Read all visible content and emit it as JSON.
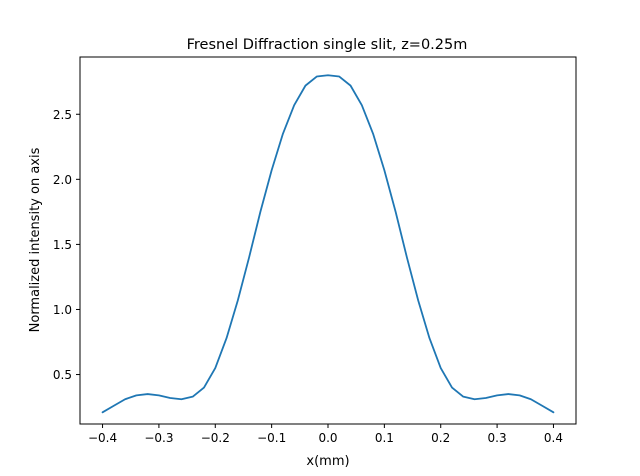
{
  "chart_data": {
    "type": "line",
    "title": "Fresnel Diffraction single slit, z=0.25m",
    "xlabel": "x(mm)",
    "ylabel": "Normalized intensity on axis",
    "xlim": [
      -0.44,
      0.44
    ],
    "ylim": [
      0.12,
      2.94
    ],
    "xticks": [
      -0.4,
      -0.3,
      -0.2,
      -0.1,
      0.0,
      0.1,
      0.2,
      0.3,
      0.4
    ],
    "xtick_labels": [
      "−0.4",
      "−0.3",
      "−0.2",
      "−0.1",
      "0.0",
      "0.1",
      "0.2",
      "0.3",
      "0.4"
    ],
    "yticks": [
      0.5,
      1.0,
      1.5,
      2.0,
      2.5
    ],
    "ytick_labels": [
      "0.5",
      "1.0",
      "1.5",
      "2.0",
      "2.5"
    ],
    "grid": false,
    "line_color": "#1f77b4",
    "series": [
      {
        "x": [
          -0.4,
          -0.38,
          -0.36,
          -0.34,
          -0.32,
          -0.3,
          -0.28,
          -0.26,
          -0.24,
          -0.22,
          -0.2,
          -0.18,
          -0.16,
          -0.14,
          -0.12,
          -0.1,
          -0.08,
          -0.06,
          -0.04,
          -0.02,
          0.0,
          0.02,
          0.04,
          0.06,
          0.08,
          0.1,
          0.12,
          0.14,
          0.16,
          0.18,
          0.2,
          0.22,
          0.24,
          0.26,
          0.28,
          0.3,
          0.32,
          0.34,
          0.36,
          0.38,
          0.4
        ],
        "values": [
          0.21,
          0.26,
          0.31,
          0.34,
          0.35,
          0.34,
          0.32,
          0.31,
          0.33,
          0.4,
          0.55,
          0.78,
          1.07,
          1.4,
          1.75,
          2.07,
          2.35,
          2.57,
          2.72,
          2.79,
          2.8,
          2.79,
          2.72,
          2.57,
          2.35,
          2.07,
          1.75,
          1.4,
          1.07,
          0.78,
          0.55,
          0.4,
          0.33,
          0.31,
          0.32,
          0.34,
          0.35,
          0.34,
          0.31,
          0.26,
          0.21
        ]
      }
    ]
  }
}
